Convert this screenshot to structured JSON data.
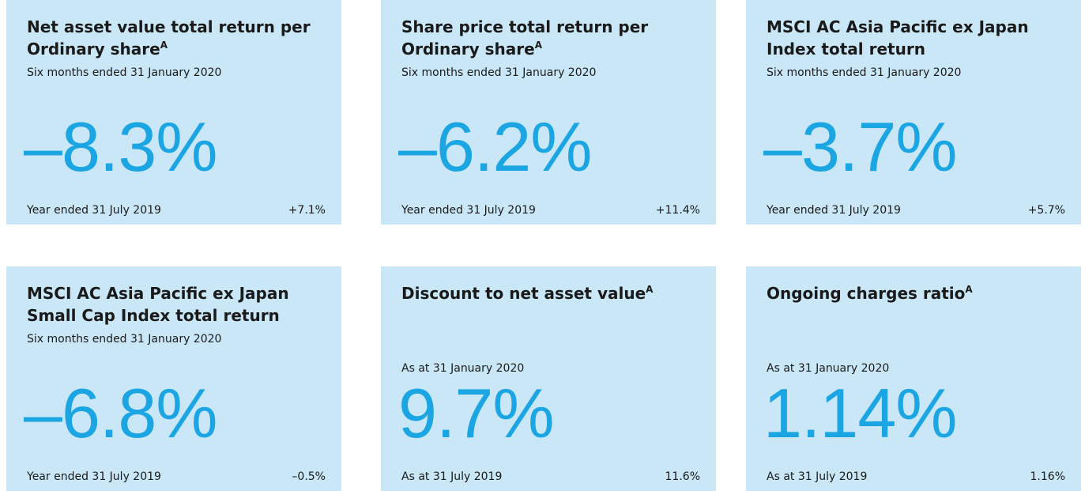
{
  "cards": [
    {
      "title": "Net asset value total return per Ordinary share",
      "marker": "A",
      "period": "Six months ended 31 January 2020",
      "value": "–8.3%",
      "compare_label": "Year ended 31 July 2019",
      "compare_value": "+7.1%"
    },
    {
      "title": "Share price total return per Ordinary share",
      "marker": "A",
      "period": "Six months ended 31 January 2020",
      "value": "–6.2%",
      "compare_label": "Year ended 31 July 2019",
      "compare_value": "+11.4%"
    },
    {
      "title": "MSCI AC Asia Pacific ex Japan Index total return",
      "period": "Six months ended 31 January 2020",
      "value": "–3.7%",
      "compare_label": "Year ended 31 July 2019",
      "compare_value": "+5.7%"
    },
    {
      "title": "MSCI AC Asia Pacific ex Japan Small Cap Index total return",
      "period": "Six months ended 31 January 2020",
      "value": "–6.8%",
      "compare_label": "Year ended 31 July 2019",
      "compare_value": "–0.5%"
    },
    {
      "title": "Discount to net asset value",
      "marker": "A",
      "period": "As at 31 January 2020",
      "value": "9.7%",
      "compare_label": "As at 31 July 2019",
      "compare_value": "11.6%"
    },
    {
      "title": "Ongoing charges ratio",
      "marker": "A",
      "period": "As at 31 January 2020",
      "value": "1.14%",
      "compare_label": "As at 31 July 2019",
      "compare_value": "1.16%"
    }
  ]
}
